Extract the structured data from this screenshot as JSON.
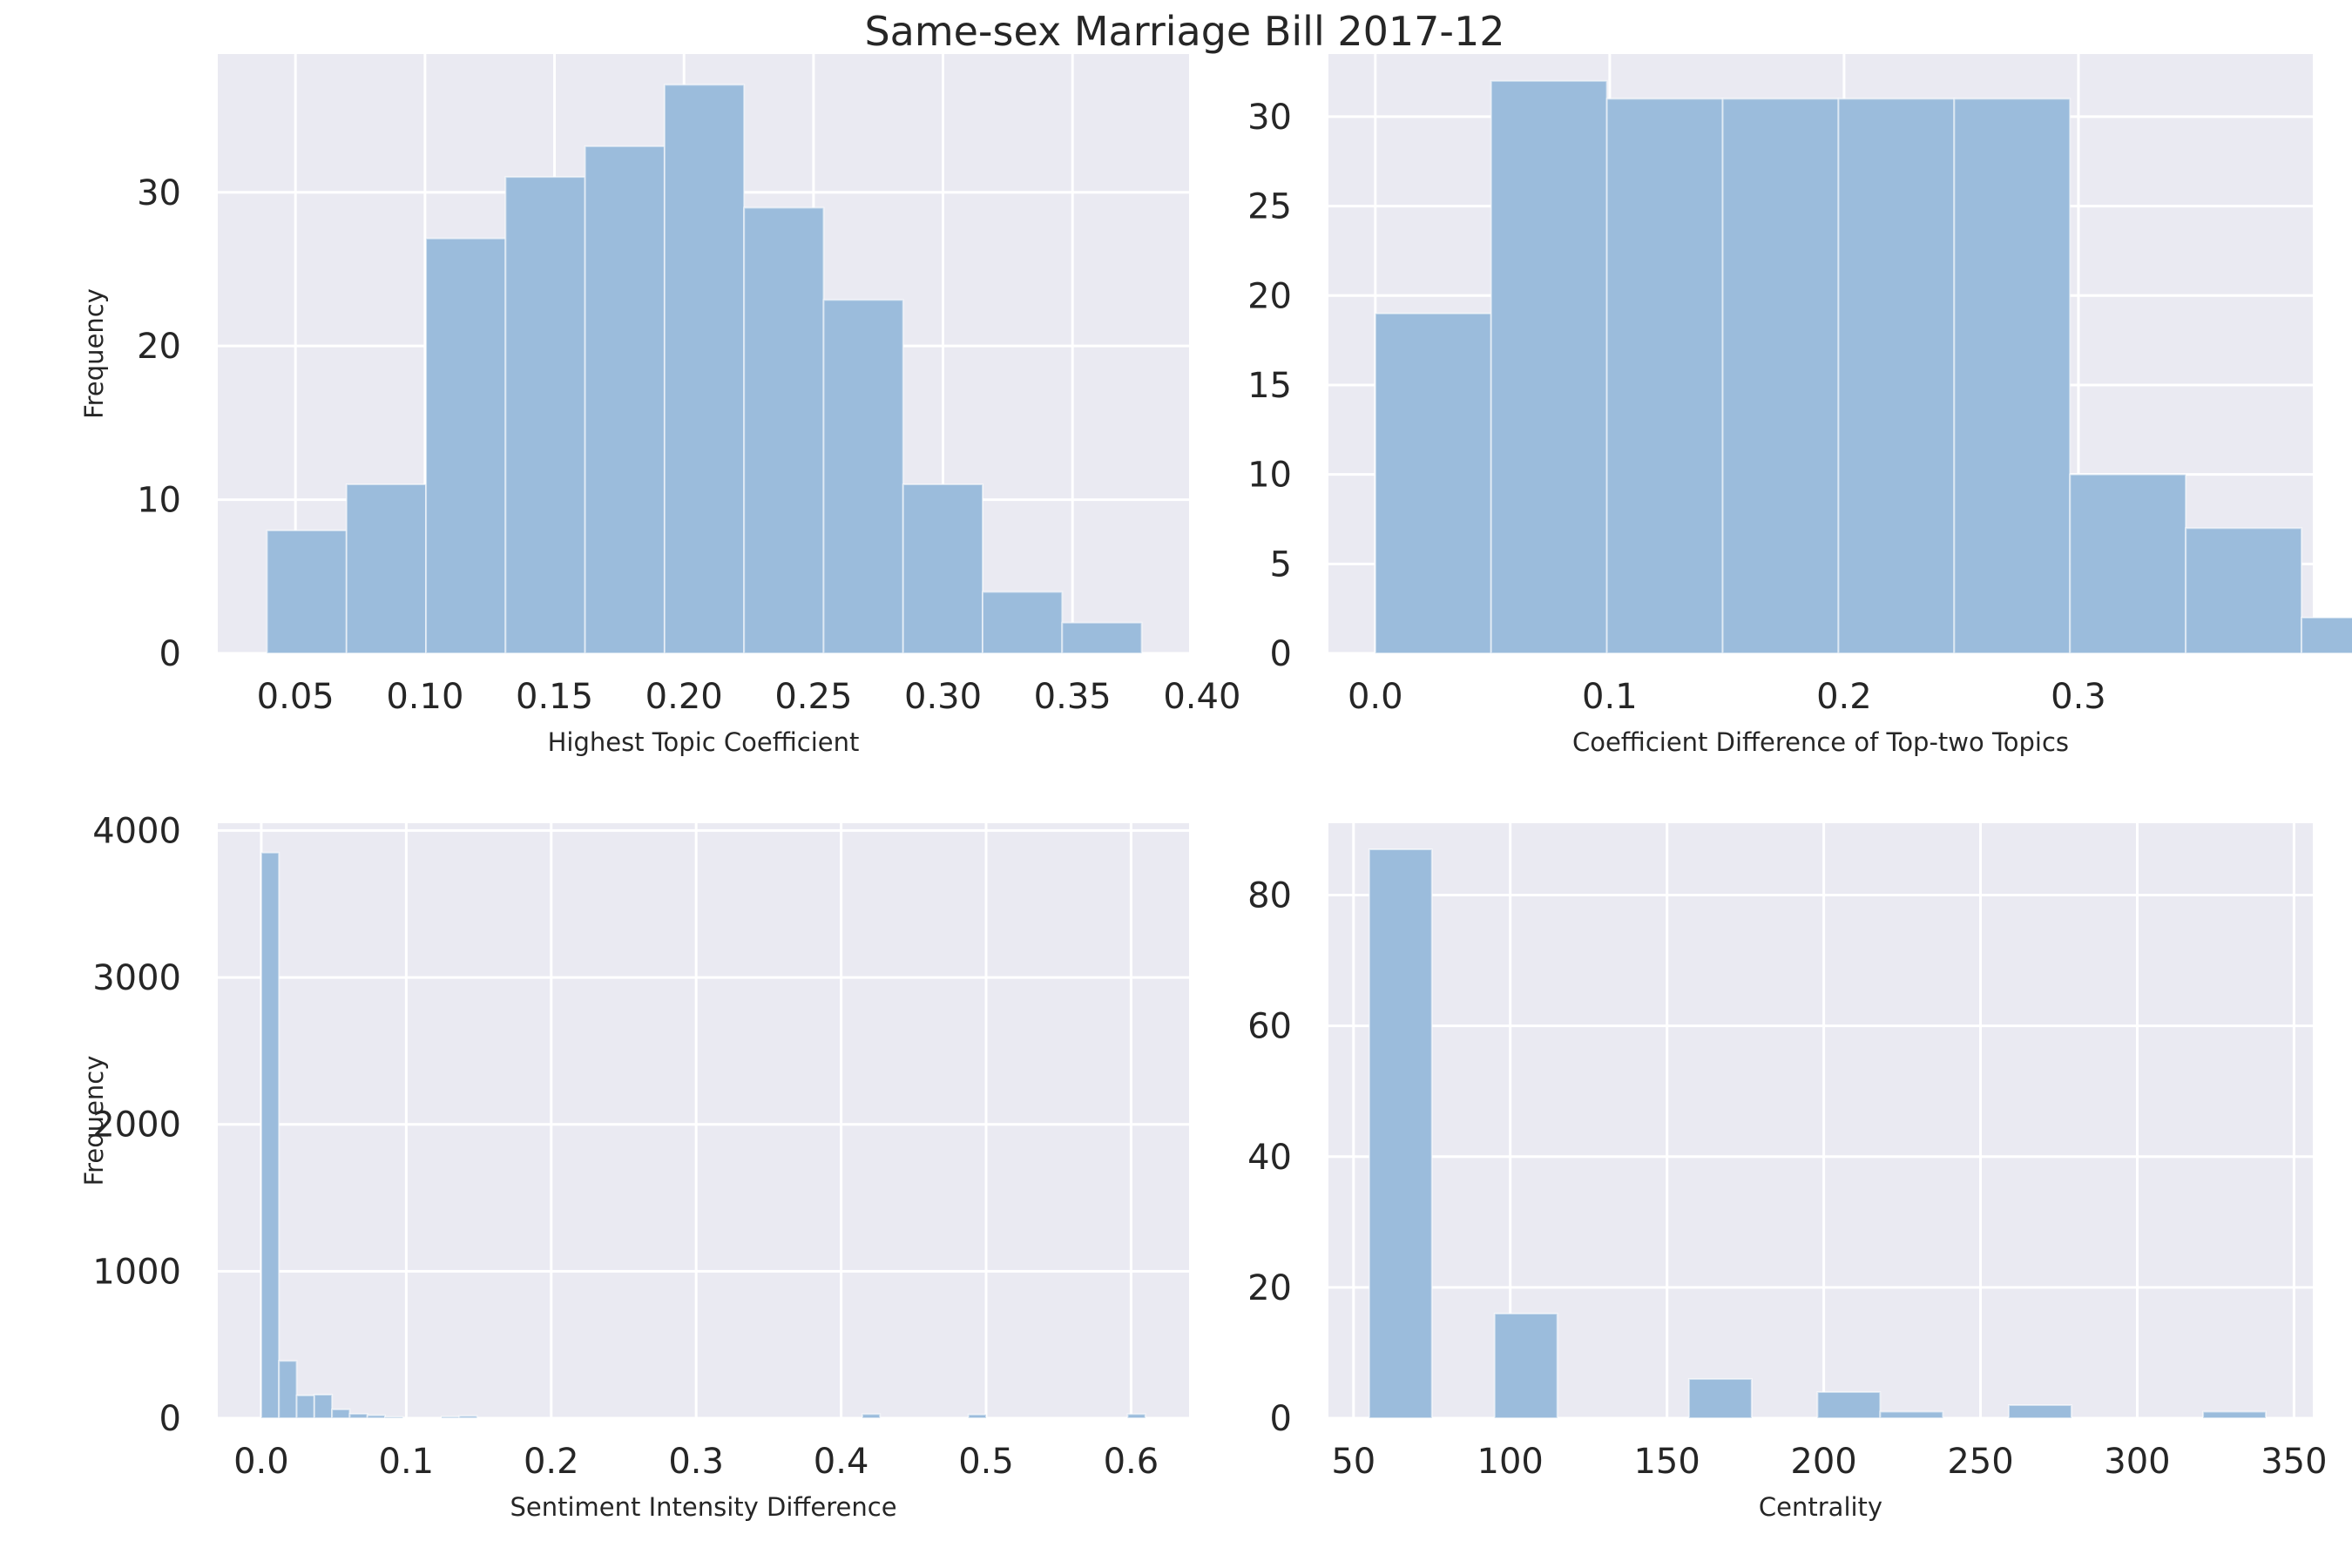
{
  "figure": {
    "title": "Same-sex Marriage Bill 2017-12"
  },
  "chart_data": [
    {
      "type": "histogram",
      "xlabel": "Highest Topic Coefficient",
      "ylabel": "Frequency",
      "xlim": [
        0.02,
        0.395
      ],
      "ylim": [
        0,
        39
      ],
      "xticks": [
        0.05,
        0.1,
        0.15,
        0.2,
        0.25,
        0.3,
        0.35,
        0.4
      ],
      "xtick_labels": [
        "0.05",
        "0.10",
        "0.15",
        "0.20",
        "0.25",
        "0.30",
        "0.35",
        "0.40"
      ],
      "yticks": [
        0,
        10,
        20,
        30
      ],
      "ytick_labels": [
        "0",
        "10",
        "20",
        "30"
      ],
      "bins": [
        {
          "x0": 0.039,
          "x1": 0.0697,
          "count": 8
        },
        {
          "x0": 0.0697,
          "x1": 0.1004,
          "count": 11
        },
        {
          "x0": 0.1004,
          "x1": 0.1311,
          "count": 27
        },
        {
          "x0": 0.1311,
          "x1": 0.1618,
          "count": 31
        },
        {
          "x0": 0.1618,
          "x1": 0.1925,
          "count": 33
        },
        {
          "x0": 0.1925,
          "x1": 0.2232,
          "count": 37
        },
        {
          "x0": 0.2232,
          "x1": 0.2539,
          "count": 29
        },
        {
          "x0": 0.2539,
          "x1": 0.2846,
          "count": 23
        },
        {
          "x0": 0.2846,
          "x1": 0.3153,
          "count": 11
        },
        {
          "x0": 0.3153,
          "x1": 0.346,
          "count": 4
        },
        {
          "x0": 0.346,
          "x1": 0.3767,
          "count": 2
        }
      ]
    },
    {
      "type": "histogram",
      "xlabel": "Coefficient Difference of Top-two Topics",
      "ylabel": "",
      "xlim": [
        -0.02,
        0.4
      ],
      "ylim": [
        0,
        33.5
      ],
      "xticks": [
        0.0,
        0.1,
        0.2,
        0.3
      ],
      "xtick_labels": [
        "0.0",
        "0.1",
        "0.2",
        "0.3"
      ],
      "yticks": [
        0,
        5,
        10,
        15,
        20,
        25,
        30
      ],
      "ytick_labels": [
        "0",
        "5",
        "10",
        "15",
        "20",
        "25",
        "30"
      ],
      "bins": [
        {
          "x0": 0.0,
          "x1": 0.0494,
          "count": 19
        },
        {
          "x0": 0.0494,
          "x1": 0.0988,
          "count": 32
        },
        {
          "x0": 0.0988,
          "x1": 0.1482,
          "count": 31
        },
        {
          "x0": 0.1482,
          "x1": 0.1976,
          "count": 31
        },
        {
          "x0": 0.1976,
          "x1": 0.247,
          "count": 31
        },
        {
          "x0": 0.247,
          "x1": 0.2964,
          "count": 31
        },
        {
          "x0": 0.2964,
          "x1": 0.3458,
          "count": 10
        },
        {
          "x0": 0.3458,
          "x1": 0.3952,
          "count": 7
        },
        {
          "x0": 0.3952,
          "x1": 0.4446,
          "count": 2
        }
      ]
    },
    {
      "type": "histogram",
      "xlabel": "Sentiment Intensity Difference",
      "ylabel": "Frequency",
      "xlim": [
        -0.03,
        0.64
      ],
      "ylim": [
        0,
        4050
      ],
      "xticks": [
        0.0,
        0.1,
        0.2,
        0.3,
        0.4,
        0.5,
        0.6
      ],
      "xtick_labels": [
        "0.0",
        "0.1",
        "0.2",
        "0.3",
        "0.4",
        "0.5",
        "0.6"
      ],
      "yticks": [
        0,
        1000,
        2000,
        3000,
        4000
      ],
      "ytick_labels": [
        "0",
        "1000",
        "2000",
        "3000",
        "4000"
      ],
      "bins": [
        {
          "x0": 0.0,
          "x1": 0.0122,
          "count": 3850
        },
        {
          "x0": 0.0122,
          "x1": 0.0244,
          "count": 390
        },
        {
          "x0": 0.0244,
          "x1": 0.0366,
          "count": 155
        },
        {
          "x0": 0.0366,
          "x1": 0.0488,
          "count": 160
        },
        {
          "x0": 0.0488,
          "x1": 0.061,
          "count": 60
        },
        {
          "x0": 0.061,
          "x1": 0.0732,
          "count": 30
        },
        {
          "x0": 0.0732,
          "x1": 0.0854,
          "count": 20
        },
        {
          "x0": 0.0854,
          "x1": 0.0976,
          "count": 8
        },
        {
          "x0": 0.1244,
          "x1": 0.1366,
          "count": 10
        },
        {
          "x0": 0.1366,
          "x1": 0.1488,
          "count": 15
        },
        {
          "x0": 0.4146,
          "x1": 0.4268,
          "count": 28
        },
        {
          "x0": 0.4878,
          "x1": 0.5,
          "count": 25
        },
        {
          "x0": 0.5976,
          "x1": 0.6098,
          "count": 28
        }
      ]
    },
    {
      "type": "histogram",
      "xlabel": "Centrality",
      "ylabel": "",
      "xlim": [
        42,
        356
      ],
      "ylim": [
        0,
        91
      ],
      "xticks": [
        50,
        100,
        150,
        200,
        250,
        300,
        350
      ],
      "xtick_labels": [
        "50",
        "100",
        "150",
        "200",
        "250",
        "300",
        "350"
      ],
      "yticks": [
        0,
        20,
        40,
        60,
        80
      ],
      "ytick_labels": [
        "0",
        "20",
        "40",
        "60",
        "80"
      ],
      "bins": [
        {
          "x0": 55,
          "x1": 75,
          "count": 87
        },
        {
          "x0": 95,
          "x1": 115,
          "count": 16
        },
        {
          "x0": 157,
          "x1": 177,
          "count": 6
        },
        {
          "x0": 198,
          "x1": 218,
          "count": 4
        },
        {
          "x0": 218,
          "x1": 238,
          "count": 1
        },
        {
          "x0": 259,
          "x1": 279,
          "count": 2
        },
        {
          "x0": 321,
          "x1": 341,
          "count": 1
        }
      ]
    }
  ]
}
